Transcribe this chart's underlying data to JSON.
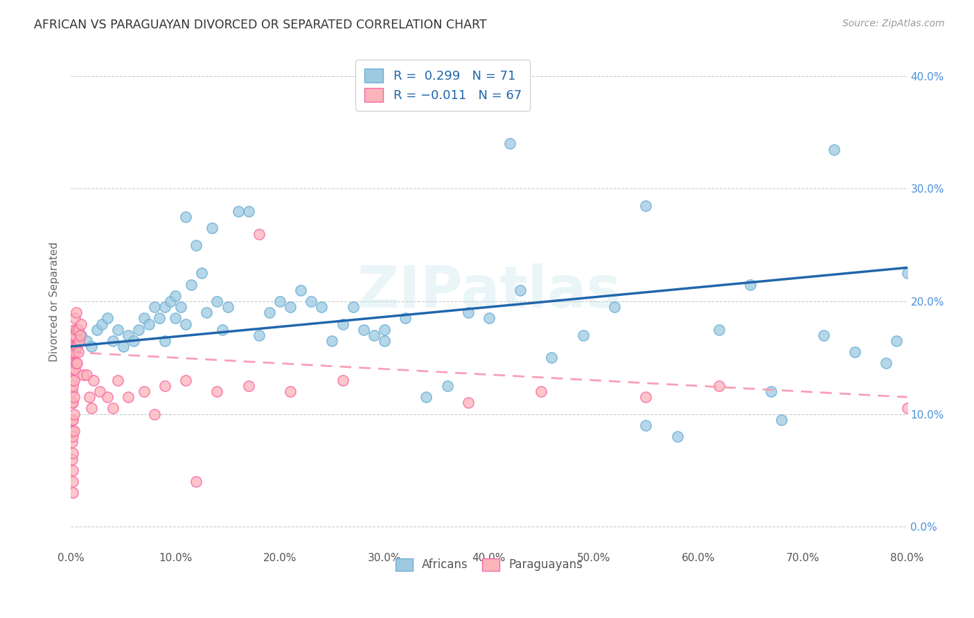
{
  "title": "AFRICAN VS PARAGUAYAN DIVORCED OR SEPARATED CORRELATION CHART",
  "source": "Source: ZipAtlas.com",
  "xlim": [
    0.0,
    0.8
  ],
  "ylim": [
    -0.02,
    0.42
  ],
  "legend_labels": [
    "Africans",
    "Paraguayans"
  ],
  "legend_R": [
    "R = 0.299",
    "R = -0.011"
  ],
  "legend_N": [
    "N = 71",
    "N = 67"
  ],
  "african_color": "#9ecae1",
  "african_edge_color": "#6baed6",
  "paraguayan_color": "#fbb4b9",
  "paraguayan_edge_color": "#f768a1",
  "african_line_color": "#2166ac",
  "paraguayan_line_color": "#fa9fb5",
  "watermark": "ZIPatlas",
  "ylabel": "Divorced or Separated",
  "african_x": [
    0.01,
    0.015,
    0.02,
    0.025,
    0.03,
    0.035,
    0.04,
    0.045,
    0.05,
    0.055,
    0.06,
    0.065,
    0.07,
    0.075,
    0.08,
    0.085,
    0.09,
    0.09,
    0.095,
    0.1,
    0.1,
    0.105,
    0.11,
    0.11,
    0.115,
    0.12,
    0.125,
    0.13,
    0.135,
    0.14,
    0.145,
    0.15,
    0.16,
    0.17,
    0.18,
    0.19,
    0.2,
    0.21,
    0.22,
    0.23,
    0.24,
    0.25,
    0.26,
    0.27,
    0.28,
    0.29,
    0.3,
    0.32,
    0.34,
    0.36,
    0.38,
    0.4,
    0.43,
    0.46,
    0.49,
    0.52,
    0.55,
    0.58,
    0.62,
    0.65,
    0.68,
    0.72,
    0.75,
    0.78,
    0.8,
    0.3,
    0.42,
    0.55,
    0.67,
    0.73,
    0.79
  ],
  "african_y": [
    0.17,
    0.165,
    0.16,
    0.175,
    0.18,
    0.185,
    0.165,
    0.175,
    0.16,
    0.17,
    0.165,
    0.175,
    0.185,
    0.18,
    0.195,
    0.185,
    0.195,
    0.165,
    0.2,
    0.205,
    0.185,
    0.195,
    0.275,
    0.18,
    0.215,
    0.25,
    0.225,
    0.19,
    0.265,
    0.2,
    0.175,
    0.195,
    0.28,
    0.28,
    0.17,
    0.19,
    0.2,
    0.195,
    0.21,
    0.2,
    0.195,
    0.165,
    0.18,
    0.195,
    0.175,
    0.17,
    0.165,
    0.185,
    0.115,
    0.125,
    0.19,
    0.185,
    0.21,
    0.15,
    0.17,
    0.195,
    0.09,
    0.08,
    0.175,
    0.215,
    0.095,
    0.17,
    0.155,
    0.145,
    0.225,
    0.175,
    0.34,
    0.285,
    0.12,
    0.335,
    0.165
  ],
  "paraguayan_x": [
    0.001,
    0.001,
    0.001,
    0.001,
    0.001,
    0.001,
    0.001,
    0.001,
    0.001,
    0.002,
    0.002,
    0.002,
    0.002,
    0.002,
    0.002,
    0.002,
    0.002,
    0.002,
    0.002,
    0.002,
    0.003,
    0.003,
    0.003,
    0.003,
    0.003,
    0.003,
    0.003,
    0.004,
    0.004,
    0.004,
    0.004,
    0.005,
    0.005,
    0.005,
    0.005,
    0.006,
    0.006,
    0.007,
    0.007,
    0.008,
    0.009,
    0.01,
    0.012,
    0.015,
    0.018,
    0.022,
    0.028,
    0.035,
    0.045,
    0.055,
    0.07,
    0.09,
    0.11,
    0.14,
    0.17,
    0.21,
    0.26,
    0.62,
    0.38,
    0.45,
    0.55,
    0.18,
    0.02,
    0.04,
    0.08,
    0.12,
    0.8
  ],
  "paraguayan_y": [
    0.16,
    0.145,
    0.13,
    0.12,
    0.11,
    0.095,
    0.085,
    0.075,
    0.06,
    0.17,
    0.155,
    0.14,
    0.125,
    0.11,
    0.095,
    0.08,
    0.065,
    0.05,
    0.04,
    0.03,
    0.175,
    0.16,
    0.145,
    0.13,
    0.115,
    0.1,
    0.085,
    0.185,
    0.17,
    0.155,
    0.14,
    0.19,
    0.175,
    0.16,
    0.145,
    0.16,
    0.145,
    0.175,
    0.155,
    0.165,
    0.17,
    0.18,
    0.135,
    0.135,
    0.115,
    0.13,
    0.12,
    0.115,
    0.13,
    0.115,
    0.12,
    0.125,
    0.13,
    0.12,
    0.125,
    0.12,
    0.13,
    0.125,
    0.11,
    0.12,
    0.115,
    0.26,
    0.105,
    0.105,
    0.1,
    0.04,
    0.105
  ],
  "african_trend": [
    0.0,
    0.8,
    0.16,
    0.23
  ],
  "paraguayan_trend": [
    0.0,
    0.8,
    0.155,
    0.115
  ]
}
